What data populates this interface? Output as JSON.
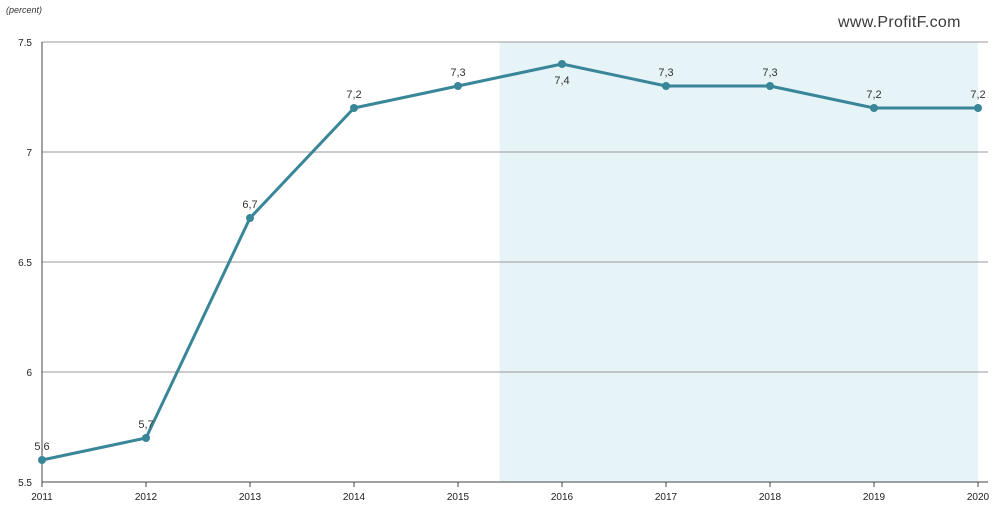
{
  "unit_label": "(percent)",
  "watermark": "www.ProfitF.com",
  "chart_data": {
    "type": "line",
    "x": [
      "2011",
      "2012",
      "2013",
      "2014",
      "2015",
      "2016",
      "2017",
      "2018",
      "2019",
      "2020"
    ],
    "series": [
      {
        "values": [
          5.6,
          5.7,
          6.7,
          7.2,
          7.3,
          7.4,
          7.3,
          7.3,
          7.2,
          7.2
        ],
        "value_labels": [
          "5,6",
          "5,7",
          "6,7",
          "7,2",
          "7,3",
          "7,4",
          "7,3",
          "7,3",
          "7,2",
          "7,2"
        ],
        "color": "#3a8699"
      }
    ],
    "y_ticks": [
      "7.5",
      "7",
      "6.5",
      "6",
      "5.5"
    ],
    "y_tick_values": [
      7.5,
      7.0,
      6.5,
      6.0,
      5.5
    ],
    "ylim": [
      5.5,
      7.5
    ],
    "forecast_shading": {
      "from": 2015.4,
      "to": 2020,
      "color": "#e6f3f7"
    },
    "grid": true,
    "legend": "none",
    "colors": {
      "line": "#3a8699",
      "grid": "#999999",
      "shade": "#e6f3f7",
      "axis": "#444444"
    }
  }
}
